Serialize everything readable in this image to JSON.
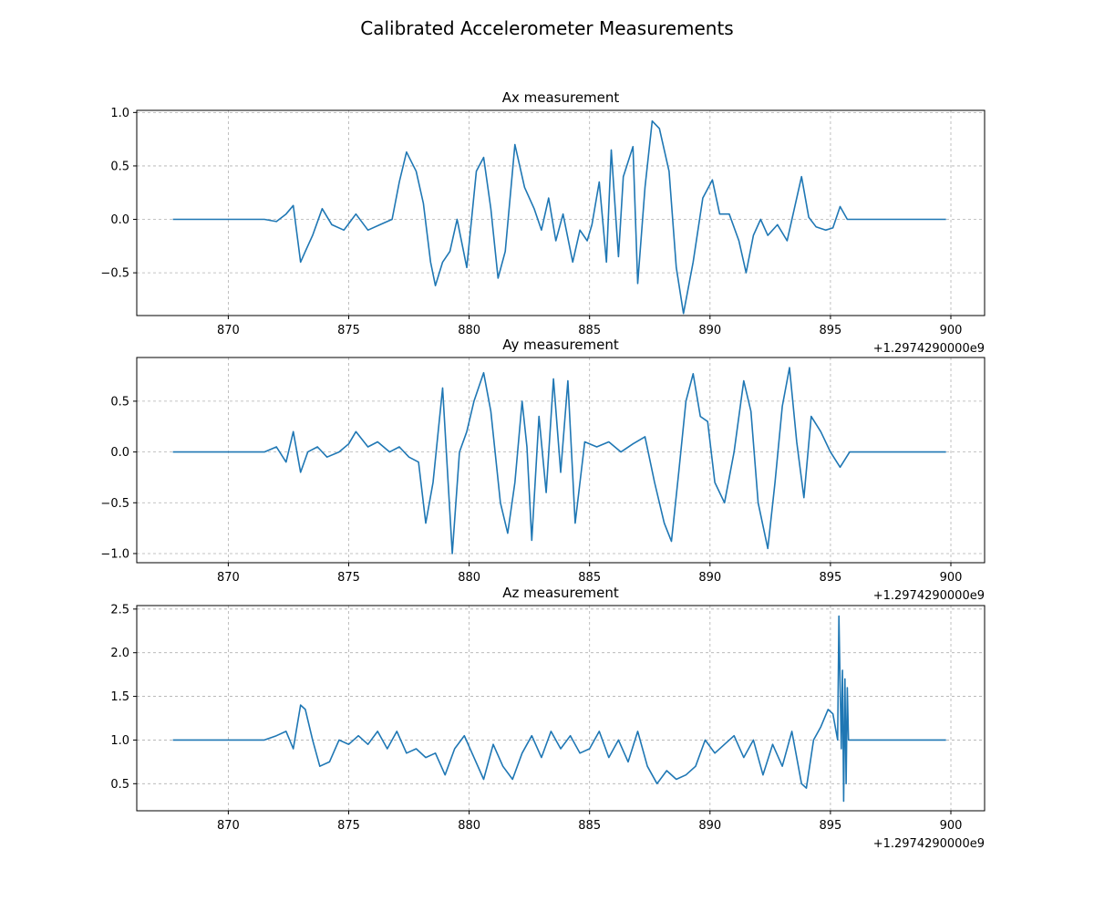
{
  "figure": {
    "title": "Calibrated Accelerometer Measurements"
  },
  "chart_data": [
    {
      "type": "line",
      "title": "Ax measurement",
      "xlabel": "",
      "ylabel": "",
      "x_offset_label": "+1.2974290000e9",
      "xlim": [
        866.2,
        901.4
      ],
      "ylim": [
        -0.9,
        1.02
      ],
      "xticks": [
        870,
        875,
        880,
        885,
        890,
        895,
        900
      ],
      "xtick_labels": [
        "870",
        "875",
        "880",
        "885",
        "890",
        "895",
        "900"
      ],
      "yticks": [
        -0.5,
        0.0,
        0.5,
        1.0
      ],
      "ytick_labels": [
        "−0.5",
        "0.0",
        "0.5",
        "1.0"
      ],
      "grid": true,
      "color": "#1f77b4",
      "x": [
        867.7,
        871.5,
        872.0,
        872.4,
        872.7,
        873.0,
        873.2,
        873.5,
        873.9,
        874.3,
        874.8,
        875.3,
        875.8,
        876.3,
        876.8,
        877.1,
        877.4,
        877.8,
        878.1,
        878.4,
        878.6,
        878.9,
        879.2,
        879.5,
        879.9,
        880.3,
        880.6,
        880.9,
        881.2,
        881.5,
        881.9,
        882.3,
        882.7,
        883.0,
        883.3,
        883.6,
        883.9,
        884.3,
        884.6,
        884.9,
        885.1,
        885.4,
        885.7,
        885.9,
        886.2,
        886.4,
        886.8,
        887.0,
        887.3,
        887.6,
        887.9,
        888.3,
        888.6,
        888.9,
        889.3,
        889.7,
        890.1,
        890.4,
        890.8,
        891.2,
        891.5,
        891.8,
        892.1,
        892.4,
        892.8,
        893.2,
        893.5,
        893.8,
        894.1,
        894.4,
        894.8,
        895.1,
        895.4,
        895.7,
        896.0,
        896.5,
        897.5,
        899.8
      ],
      "y": [
        0.0,
        0.0,
        -0.02,
        0.05,
        0.13,
        -0.4,
        -0.3,
        -0.15,
        0.1,
        -0.05,
        -0.1,
        0.05,
        -0.1,
        -0.05,
        0.0,
        0.35,
        0.63,
        0.45,
        0.15,
        -0.4,
        -0.62,
        -0.4,
        -0.3,
        0.0,
        -0.45,
        0.45,
        0.58,
        0.1,
        -0.55,
        -0.3,
        0.7,
        0.3,
        0.1,
        -0.1,
        0.2,
        -0.2,
        0.05,
        -0.4,
        -0.1,
        -0.2,
        -0.05,
        0.35,
        -0.4,
        0.65,
        -0.35,
        0.4,
        0.68,
        -0.6,
        0.3,
        0.92,
        0.85,
        0.45,
        -0.45,
        -0.88,
        -0.4,
        0.2,
        0.37,
        0.05,
        0.05,
        -0.2,
        -0.5,
        -0.15,
        0.0,
        -0.15,
        -0.05,
        -0.2,
        0.1,
        0.4,
        0.02,
        -0.07,
        -0.1,
        -0.08,
        0.12,
        0.0,
        0.0,
        0.0,
        0.0,
        0.0
      ]
    },
    {
      "type": "line",
      "title": "Ay measurement",
      "xlabel": "",
      "ylabel": "",
      "x_offset_label": "+1.2974290000e9",
      "xlim": [
        866.2,
        901.4
      ],
      "ylim": [
        -1.09,
        0.93
      ],
      "xticks": [
        870,
        875,
        880,
        885,
        890,
        895,
        900
      ],
      "xtick_labels": [
        "870",
        "875",
        "880",
        "885",
        "890",
        "895",
        "900"
      ],
      "yticks": [
        -1.0,
        -0.5,
        0.0,
        0.5
      ],
      "ytick_labels": [
        "−1.0",
        "−0.5",
        "0.0",
        "0.5"
      ],
      "grid": true,
      "color": "#1f77b4",
      "x": [
        867.7,
        871.5,
        872.0,
        872.4,
        872.7,
        873.0,
        873.3,
        873.7,
        874.1,
        874.6,
        875.0,
        875.3,
        875.8,
        876.2,
        876.7,
        877.1,
        877.5,
        877.9,
        878.2,
        878.5,
        878.9,
        879.3,
        879.6,
        879.9,
        880.2,
        880.6,
        880.9,
        881.3,
        881.6,
        881.9,
        882.2,
        882.4,
        882.6,
        882.9,
        883.2,
        883.5,
        883.8,
        884.1,
        884.4,
        884.8,
        885.3,
        885.8,
        886.3,
        886.8,
        887.3,
        887.7,
        888.1,
        888.4,
        888.7,
        889.0,
        889.3,
        889.6,
        889.9,
        890.2,
        890.6,
        891.0,
        891.4,
        891.7,
        892.0,
        892.4,
        892.7,
        893.0,
        893.3,
        893.6,
        893.9,
        894.2,
        894.6,
        895.0,
        895.4,
        895.8,
        896.5,
        899.8
      ],
      "y": [
        0.0,
        0.0,
        0.05,
        -0.1,
        0.2,
        -0.2,
        0.0,
        0.05,
        -0.05,
        0.0,
        0.08,
        0.2,
        0.05,
        0.1,
        0.0,
        0.05,
        -0.05,
        -0.1,
        -0.7,
        -0.3,
        0.63,
        -1.0,
        0.0,
        0.2,
        0.5,
        0.78,
        0.4,
        -0.5,
        -0.8,
        -0.3,
        0.5,
        0.05,
        -0.87,
        0.35,
        -0.4,
        0.72,
        -0.2,
        0.7,
        -0.7,
        0.1,
        0.05,
        0.1,
        0.0,
        0.08,
        0.15,
        -0.3,
        -0.7,
        -0.88,
        -0.2,
        0.5,
        0.77,
        0.35,
        0.3,
        -0.3,
        -0.5,
        0.0,
        0.7,
        0.4,
        -0.5,
        -0.95,
        -0.3,
        0.45,
        0.83,
        0.1,
        -0.45,
        0.35,
        0.2,
        0.0,
        -0.15,
        0.0,
        0.0,
        0.0
      ]
    },
    {
      "type": "line",
      "title": "Az measurement",
      "xlabel": "",
      "ylabel": "",
      "x_offset_label": "+1.2974290000e9",
      "xlim": [
        866.2,
        901.4
      ],
      "ylim": [
        0.19,
        2.54
      ],
      "xticks": [
        870,
        875,
        880,
        885,
        890,
        895,
        900
      ],
      "xtick_labels": [
        "870",
        "875",
        "880",
        "885",
        "890",
        "895",
        "900"
      ],
      "yticks": [
        0.5,
        1.0,
        1.5,
        2.0,
        2.5
      ],
      "ytick_labels": [
        "0.5",
        "1.0",
        "1.5",
        "2.0",
        "2.5"
      ],
      "grid": true,
      "color": "#1f77b4",
      "x": [
        867.7,
        871.5,
        872.0,
        872.4,
        872.7,
        873.0,
        873.2,
        873.5,
        873.8,
        874.2,
        874.6,
        875.0,
        875.4,
        875.8,
        876.2,
        876.6,
        877.0,
        877.4,
        877.8,
        878.2,
        878.6,
        879.0,
        879.4,
        879.8,
        880.2,
        880.6,
        881.0,
        881.4,
        881.8,
        882.2,
        882.6,
        883.0,
        883.4,
        883.8,
        884.2,
        884.6,
        885.0,
        885.4,
        885.8,
        886.2,
        886.6,
        887.0,
        887.4,
        887.8,
        888.2,
        888.6,
        889.0,
        889.4,
        889.8,
        890.2,
        890.6,
        891.0,
        891.4,
        891.8,
        892.2,
        892.6,
        893.0,
        893.4,
        893.8,
        894.0,
        894.3,
        894.6,
        894.9,
        895.1,
        895.3,
        895.35,
        895.45,
        895.5,
        895.55,
        895.6,
        895.65,
        895.7,
        895.75,
        895.8,
        896.2,
        897.5,
        899.8
      ],
      "y": [
        1.0,
        1.0,
        1.05,
        1.1,
        0.9,
        1.4,
        1.35,
        1.0,
        0.7,
        0.75,
        1.0,
        0.95,
        1.05,
        0.95,
        1.1,
        0.9,
        1.1,
        0.85,
        0.9,
        0.8,
        0.85,
        0.6,
        0.9,
        1.05,
        0.8,
        0.55,
        0.95,
        0.7,
        0.55,
        0.85,
        1.05,
        0.8,
        1.1,
        0.9,
        1.05,
        0.85,
        0.9,
        1.1,
        0.8,
        1.0,
        0.75,
        1.1,
        0.7,
        0.5,
        0.65,
        0.55,
        0.6,
        0.7,
        1.0,
        0.85,
        0.95,
        1.05,
        0.8,
        1.0,
        0.6,
        0.95,
        0.7,
        1.1,
        0.5,
        0.45,
        1.0,
        1.15,
        1.35,
        1.3,
        1.0,
        2.42,
        0.9,
        1.8,
        0.3,
        1.7,
        0.5,
        1.6,
        1.0,
        1.0,
        1.0,
        1.0,
        1.0
      ]
    }
  ]
}
